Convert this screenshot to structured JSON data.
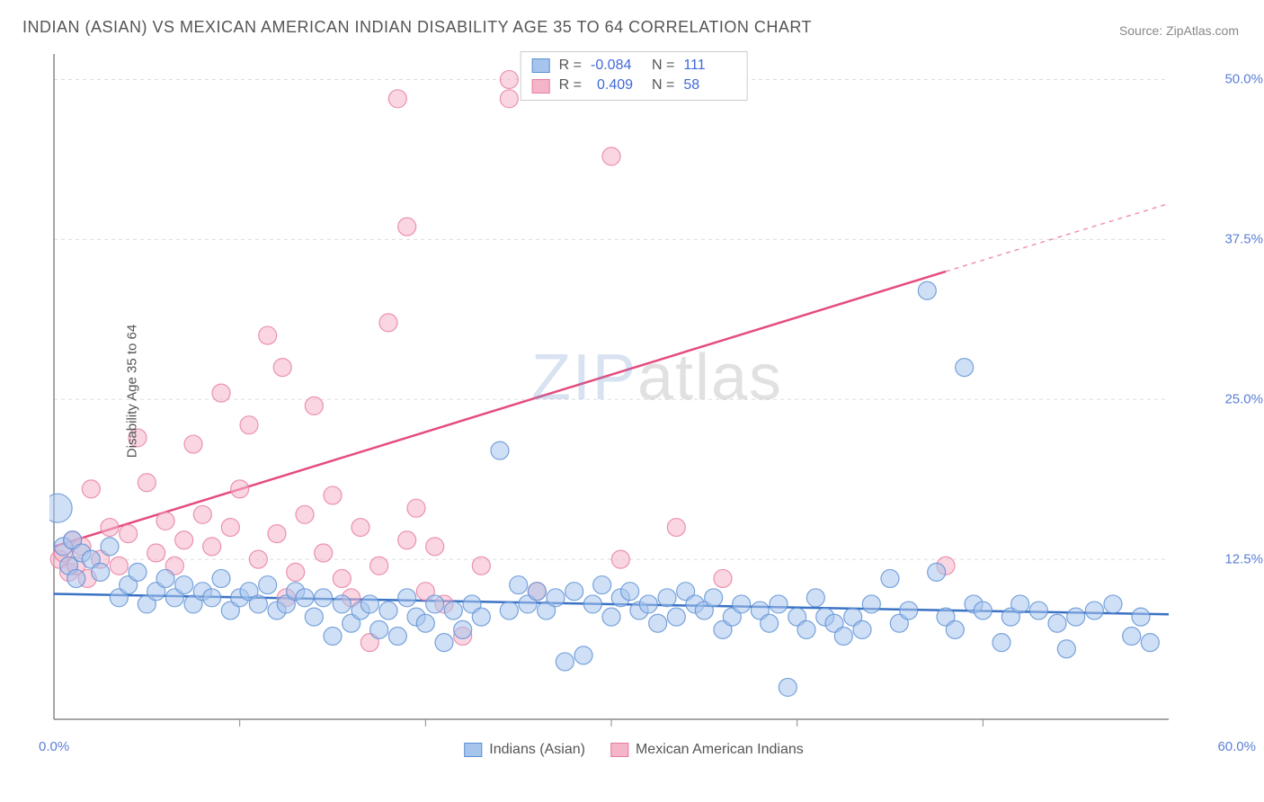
{
  "title": "INDIAN (ASIAN) VS MEXICAN AMERICAN INDIAN DISABILITY AGE 35 TO 64 CORRELATION CHART",
  "source_label": "Source: ZipAtlas.com",
  "watermark": {
    "part1": "ZIP",
    "part2": "atlas"
  },
  "chart": {
    "type": "scatter",
    "ylabel": "Disability Age 35 to 64",
    "xlim": [
      0,
      60
    ],
    "ylim": [
      0,
      52
    ],
    "ytick_labels": [
      "12.5%",
      "25.0%",
      "37.5%",
      "50.0%"
    ],
    "ytick_values": [
      12.5,
      25.0,
      37.5,
      50.0
    ],
    "xtick_min_label": "0.0%",
    "xtick_max_label": "60.0%",
    "xtick_minor_values": [
      10,
      20,
      30,
      40,
      50
    ],
    "grid_color": "#dddddd",
    "axis_color": "#888888",
    "background_color": "#ffffff",
    "label_fontsize": 15,
    "tick_fontsize": 15,
    "tick_color": "#5b7fd6",
    "marker_radius": 10,
    "marker_opacity": 0.55,
    "line_width": 2.5,
    "series": [
      {
        "name": "Indians (Asian)",
        "color_fill": "#a7c5ec",
        "color_stroke": "#5a8fd4",
        "line_color": "#3a72c4",
        "R": "-0.084",
        "N": "111",
        "trend": {
          "x1": 0,
          "y1": 9.8,
          "x2": 60,
          "y2": 8.2
        },
        "points": [
          {
            "x": 0.2,
            "y": 16.5,
            "r": 16
          },
          {
            "x": 0.5,
            "y": 13.5
          },
          {
            "x": 0.8,
            "y": 12.0
          },
          {
            "x": 1.0,
            "y": 14.0
          },
          {
            "x": 1.2,
            "y": 11.0
          },
          {
            "x": 1.5,
            "y": 13.0
          },
          {
            "x": 2.0,
            "y": 12.5
          },
          {
            "x": 2.5,
            "y": 11.5
          },
          {
            "x": 3.0,
            "y": 13.5
          },
          {
            "x": 3.5,
            "y": 9.5
          },
          {
            "x": 4.0,
            "y": 10.5
          },
          {
            "x": 4.5,
            "y": 11.5
          },
          {
            "x": 5.0,
            "y": 9.0
          },
          {
            "x": 5.5,
            "y": 10.0
          },
          {
            "x": 6.0,
            "y": 11.0
          },
          {
            "x": 6.5,
            "y": 9.5
          },
          {
            "x": 7.0,
            "y": 10.5
          },
          {
            "x": 7.5,
            "y": 9.0
          },
          {
            "x": 8.0,
            "y": 10.0
          },
          {
            "x": 8.5,
            "y": 9.5
          },
          {
            "x": 9.0,
            "y": 11.0
          },
          {
            "x": 9.5,
            "y": 8.5
          },
          {
            "x": 10.0,
            "y": 9.5
          },
          {
            "x": 10.5,
            "y": 10.0
          },
          {
            "x": 11.0,
            "y": 9.0
          },
          {
            "x": 11.5,
            "y": 10.5
          },
          {
            "x": 12.0,
            "y": 8.5
          },
          {
            "x": 12.5,
            "y": 9.0
          },
          {
            "x": 13.0,
            "y": 10.0
          },
          {
            "x": 13.5,
            "y": 9.5
          },
          {
            "x": 14.0,
            "y": 8.0
          },
          {
            "x": 14.5,
            "y": 9.5
          },
          {
            "x": 15.0,
            "y": 6.5
          },
          {
            "x": 15.5,
            "y": 9.0
          },
          {
            "x": 16.0,
            "y": 7.5
          },
          {
            "x": 16.5,
            "y": 8.5
          },
          {
            "x": 17.0,
            "y": 9.0
          },
          {
            "x": 17.5,
            "y": 7.0
          },
          {
            "x": 18.0,
            "y": 8.5
          },
          {
            "x": 18.5,
            "y": 6.5
          },
          {
            "x": 19.0,
            "y": 9.5
          },
          {
            "x": 19.5,
            "y": 8.0
          },
          {
            "x": 20.0,
            "y": 7.5
          },
          {
            "x": 20.5,
            "y": 9.0
          },
          {
            "x": 21.0,
            "y": 6.0
          },
          {
            "x": 21.5,
            "y": 8.5
          },
          {
            "x": 22.0,
            "y": 7.0
          },
          {
            "x": 22.5,
            "y": 9.0
          },
          {
            "x": 23.0,
            "y": 8.0
          },
          {
            "x": 24.0,
            "y": 21.0
          },
          {
            "x": 24.5,
            "y": 8.5
          },
          {
            "x": 25.0,
            "y": 10.5
          },
          {
            "x": 25.5,
            "y": 9.0
          },
          {
            "x": 26.0,
            "y": 10.0
          },
          {
            "x": 26.5,
            "y": 8.5
          },
          {
            "x": 27.0,
            "y": 9.5
          },
          {
            "x": 27.5,
            "y": 4.5
          },
          {
            "x": 28.0,
            "y": 10.0
          },
          {
            "x": 28.5,
            "y": 5.0
          },
          {
            "x": 29.0,
            "y": 9.0
          },
          {
            "x": 29.5,
            "y": 10.5
          },
          {
            "x": 30.0,
            "y": 8.0
          },
          {
            "x": 30.5,
            "y": 9.5
          },
          {
            "x": 31.0,
            "y": 10.0
          },
          {
            "x": 31.5,
            "y": 8.5
          },
          {
            "x": 32.0,
            "y": 9.0
          },
          {
            "x": 32.5,
            "y": 7.5
          },
          {
            "x": 33.0,
            "y": 9.5
          },
          {
            "x": 33.5,
            "y": 8.0
          },
          {
            "x": 34.0,
            "y": 10.0
          },
          {
            "x": 34.5,
            "y": 9.0
          },
          {
            "x": 35.0,
            "y": 8.5
          },
          {
            "x": 35.5,
            "y": 9.5
          },
          {
            "x": 36.0,
            "y": 7.0
          },
          {
            "x": 36.5,
            "y": 8.0
          },
          {
            "x": 37.0,
            "y": 9.0
          },
          {
            "x": 38.0,
            "y": 8.5
          },
          {
            "x": 38.5,
            "y": 7.5
          },
          {
            "x": 39.0,
            "y": 9.0
          },
          {
            "x": 39.5,
            "y": 2.5
          },
          {
            "x": 40.0,
            "y": 8.0
          },
          {
            "x": 40.5,
            "y": 7.0
          },
          {
            "x": 41.0,
            "y": 9.5
          },
          {
            "x": 41.5,
            "y": 8.0
          },
          {
            "x": 42.0,
            "y": 7.5
          },
          {
            "x": 42.5,
            "y": 6.5
          },
          {
            "x": 43.0,
            "y": 8.0
          },
          {
            "x": 43.5,
            "y": 7.0
          },
          {
            "x": 44.0,
            "y": 9.0
          },
          {
            "x": 45.0,
            "y": 11.0
          },
          {
            "x": 45.5,
            "y": 7.5
          },
          {
            "x": 46.0,
            "y": 8.5
          },
          {
            "x": 47.0,
            "y": 33.5
          },
          {
            "x": 47.5,
            "y": 11.5
          },
          {
            "x": 48.0,
            "y": 8.0
          },
          {
            "x": 48.5,
            "y": 7.0
          },
          {
            "x": 49.0,
            "y": 27.5
          },
          {
            "x": 49.5,
            "y": 9.0
          },
          {
            "x": 50.0,
            "y": 8.5
          },
          {
            "x": 51.0,
            "y": 6.0
          },
          {
            "x": 51.5,
            "y": 8.0
          },
          {
            "x": 52.0,
            "y": 9.0
          },
          {
            "x": 53.0,
            "y": 8.5
          },
          {
            "x": 54.0,
            "y": 7.5
          },
          {
            "x": 54.5,
            "y": 5.5
          },
          {
            "x": 55.0,
            "y": 8.0
          },
          {
            "x": 56.0,
            "y": 8.5
          },
          {
            "x": 57.0,
            "y": 9.0
          },
          {
            "x": 58.0,
            "y": 6.5
          },
          {
            "x": 58.5,
            "y": 8.0
          },
          {
            "x": 59.0,
            "y": 6.0
          }
        ]
      },
      {
        "name": "Mexican American Indians",
        "color_fill": "#f4b5c8",
        "color_stroke": "#e77aa0",
        "line_color": "#e54c7e",
        "R": "0.409",
        "N": "58",
        "trend": {
          "x1": 0,
          "y1": 13.5,
          "x2": 48,
          "y2": 35.0
        },
        "trend_extend": {
          "x1": 48,
          "y1": 35.0,
          "x2": 60,
          "y2": 40.3
        },
        "points": [
          {
            "x": 0.3,
            "y": 12.5
          },
          {
            "x": 0.5,
            "y": 13.0
          },
          {
            "x": 0.8,
            "y": 11.5
          },
          {
            "x": 1.0,
            "y": 14.0
          },
          {
            "x": 1.2,
            "y": 12.0
          },
          {
            "x": 1.5,
            "y": 13.5
          },
          {
            "x": 1.8,
            "y": 11.0
          },
          {
            "x": 2.0,
            "y": 18.0
          },
          {
            "x": 2.5,
            "y": 12.5
          },
          {
            "x": 3.0,
            "y": 15.0
          },
          {
            "x": 3.5,
            "y": 12.0
          },
          {
            "x": 4.0,
            "y": 14.5
          },
          {
            "x": 4.5,
            "y": 22.0
          },
          {
            "x": 5.0,
            "y": 18.5
          },
          {
            "x": 5.5,
            "y": 13.0
          },
          {
            "x": 6.0,
            "y": 15.5
          },
          {
            "x": 6.5,
            "y": 12.0
          },
          {
            "x": 7.0,
            "y": 14.0
          },
          {
            "x": 7.5,
            "y": 21.5
          },
          {
            "x": 8.0,
            "y": 16.0
          },
          {
            "x": 8.5,
            "y": 13.5
          },
          {
            "x": 9.0,
            "y": 25.5
          },
          {
            "x": 9.5,
            "y": 15.0
          },
          {
            "x": 10.0,
            "y": 18.0
          },
          {
            "x": 10.5,
            "y": 23.0
          },
          {
            "x": 11.0,
            "y": 12.5
          },
          {
            "x": 11.5,
            "y": 30.0
          },
          {
            "x": 12.0,
            "y": 14.5
          },
          {
            "x": 12.3,
            "y": 27.5
          },
          {
            "x": 12.5,
            "y": 9.5
          },
          {
            "x": 13.0,
            "y": 11.5
          },
          {
            "x": 13.5,
            "y": 16.0
          },
          {
            "x": 14.0,
            "y": 24.5
          },
          {
            "x": 14.5,
            "y": 13.0
          },
          {
            "x": 15.0,
            "y": 17.5
          },
          {
            "x": 15.5,
            "y": 11.0
          },
          {
            "x": 16.0,
            "y": 9.5
          },
          {
            "x": 16.5,
            "y": 15.0
          },
          {
            "x": 17.0,
            "y": 6.0
          },
          {
            "x": 17.5,
            "y": 12.0
          },
          {
            "x": 18.0,
            "y": 31.0
          },
          {
            "x": 18.5,
            "y": 48.5
          },
          {
            "x": 19.0,
            "y": 14.0
          },
          {
            "x": 19.0,
            "y": 38.5
          },
          {
            "x": 19.5,
            "y": 16.5
          },
          {
            "x": 20.0,
            "y": 10.0
          },
          {
            "x": 20.5,
            "y": 13.5
          },
          {
            "x": 21.0,
            "y": 9.0
          },
          {
            "x": 22.0,
            "y": 6.5
          },
          {
            "x": 23.0,
            "y": 12.0
          },
          {
            "x": 24.5,
            "y": 50.0
          },
          {
            "x": 24.5,
            "y": 48.5
          },
          {
            "x": 26.0,
            "y": 10.0
          },
          {
            "x": 30.0,
            "y": 44.0
          },
          {
            "x": 30.5,
            "y": 12.5
          },
          {
            "x": 33.5,
            "y": 15.0
          },
          {
            "x": 36.0,
            "y": 11.0
          },
          {
            "x": 48.0,
            "y": 12.0
          }
        ]
      }
    ],
    "stats_box": {
      "R_label": "R =",
      "N_label": "N ="
    },
    "bottom_legend": [
      {
        "label": "Indians (Asian)",
        "fill": "#a7c5ec",
        "stroke": "#5a8fd4"
      },
      {
        "label": "Mexican American Indians",
        "fill": "#f4b5c8",
        "stroke": "#e77aa0"
      }
    ]
  }
}
